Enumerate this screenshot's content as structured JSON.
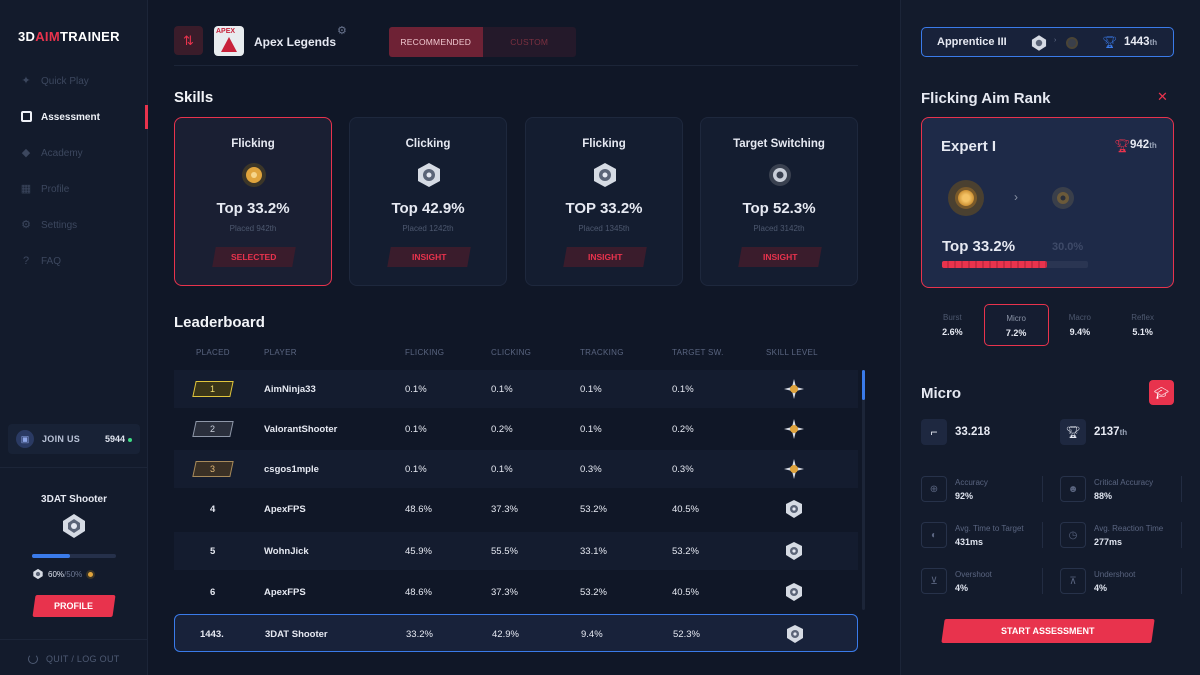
{
  "app": {
    "logo_a": "3D",
    "logo_b": "AIM",
    "logo_c": "TRAINER"
  },
  "sidebar": {
    "items": [
      {
        "label": "Quick Play",
        "icon": "gamepad-icon"
      },
      {
        "label": "Assessment",
        "icon": "assessment-icon",
        "active": true
      },
      {
        "label": "Academy",
        "icon": "academy-icon"
      },
      {
        "label": "Profile",
        "icon": "profile-icon"
      },
      {
        "label": "Settings",
        "icon": "gear-icon"
      },
      {
        "label": "FAQ",
        "icon": "question-icon"
      }
    ],
    "join": {
      "label": "JOIN US",
      "count": "5944"
    },
    "profile": {
      "name": "3DAT Shooter",
      "progress_label": "60%",
      "progress_sub": "/50%",
      "progress_fraction": 0.45,
      "button": "PROFILE"
    },
    "quit": "QUIT / LOG OUT"
  },
  "header": {
    "game_title": "Apex Legends",
    "game_icon_text": "APEX",
    "toggle": [
      "RECOMMENDED",
      "CUSTOM"
    ]
  },
  "skills": {
    "title": "Skills",
    "cards": [
      {
        "name": "Flicking",
        "pct": "Top 33.2%",
        "placed": "Placed 942th",
        "tag": "SELECTED",
        "icon": "gold-rank-icon",
        "selected": true
      },
      {
        "name": "Clicking",
        "pct": "Top 42.9%",
        "placed": "Placed 1242th",
        "tag": "INSIGHT",
        "icon": "silver-rank-icon"
      },
      {
        "name": "Flicking",
        "pct": "TOP 33.2%",
        "placed": "Placed 1345th",
        "tag": "INSIGHT",
        "icon": "silver-rank-icon"
      },
      {
        "name": "Target Switching",
        "pct": "Top 52.3%",
        "placed": "Placed 3142th",
        "tag": "INSIGHT",
        "icon": "bronze-rank-icon"
      }
    ]
  },
  "leaderboard": {
    "title": "Leaderboard",
    "columns": [
      "PLACED",
      "PLAYER",
      "FLICKING",
      "CLICKING",
      "TRACKING",
      "TARGET SW.",
      "SKILL LEVEL"
    ],
    "rows": [
      {
        "placed": "1",
        "player": "AimNinja33",
        "flicking": "0.1%",
        "clicking": "0.1%",
        "tracking": "0.1%",
        "target": "0.1%",
        "level": "gold-star-rank-icon"
      },
      {
        "placed": "2",
        "player": "ValorantShooter",
        "flicking": "0.1%",
        "clicking": "0.2%",
        "tracking": "0.1%",
        "target": "0.2%",
        "level": "gold-star-rank-icon"
      },
      {
        "placed": "3",
        "player": "csgos1mple",
        "flicking": "0.1%",
        "clicking": "0.1%",
        "tracking": "0.3%",
        "target": "0.3%",
        "level": "gold-star-rank-icon"
      },
      {
        "placed": "4",
        "player": "ApexFPS",
        "flicking": "48.6%",
        "clicking": "37.3%",
        "tracking": "53.2%",
        "target": "40.5%",
        "level": "silver-rank-icon"
      },
      {
        "placed": "5",
        "player": "WohnJick",
        "flicking": "45.9%",
        "clicking": "55.5%",
        "tracking": "33.1%",
        "target": "53.2%",
        "level": "silver-rank-icon"
      },
      {
        "placed": "6",
        "player": "ApexFPS",
        "flicking": "48.6%",
        "clicking": "37.3%",
        "tracking": "53.2%",
        "target": "40.5%",
        "level": "silver-rank-icon"
      },
      {
        "placed": "1443.",
        "player": "3DAT Shooter",
        "flicking": "33.2%",
        "clicking": "42.9%",
        "tracking": "9.4%",
        "target": "52.3%",
        "level": "silver-rank-icon",
        "me": true
      }
    ]
  },
  "right": {
    "rank": {
      "name": "Apprentice III",
      "position": "1443",
      "suffix": "th"
    },
    "flick": {
      "title": "Flicking Aim Rank",
      "level": "Expert I",
      "position": "942",
      "suffix": "th",
      "top": "Top 33.2%",
      "next": "30.0%",
      "progress_fraction": 0.72
    },
    "tabs": [
      {
        "k": "Burst",
        "v": "2.6%"
      },
      {
        "k": "Micro",
        "v": "7.2%",
        "active": true
      },
      {
        "k": "Macro",
        "v": "9.4%"
      },
      {
        "k": "Reflex",
        "v": "5.1%"
      }
    ],
    "micro": {
      "title": "Micro",
      "score": "33.218",
      "position": "2137",
      "suffix": "th",
      "metrics": [
        {
          "k": "Accuracy",
          "v": "92%",
          "icon": "crosshair-icon"
        },
        {
          "k": "Critical Accuracy",
          "v": "88%",
          "icon": "head-icon"
        },
        {
          "k": "Avg. Time to Target",
          "v": "431ms",
          "icon": "mouse-icon"
        },
        {
          "k": "Avg. Reaction Time",
          "v": "277ms",
          "icon": "timer-icon"
        },
        {
          "k": "Overshoot",
          "v": "4%",
          "icon": "overshoot-icon"
        },
        {
          "k": "Undershoot",
          "v": "4%",
          "icon": "undershoot-icon"
        }
      ],
      "button": "START ASSESSMENT"
    }
  },
  "colors": {
    "accent": "#e8334d",
    "blue": "#3a7bea",
    "bg": "#101727"
  }
}
